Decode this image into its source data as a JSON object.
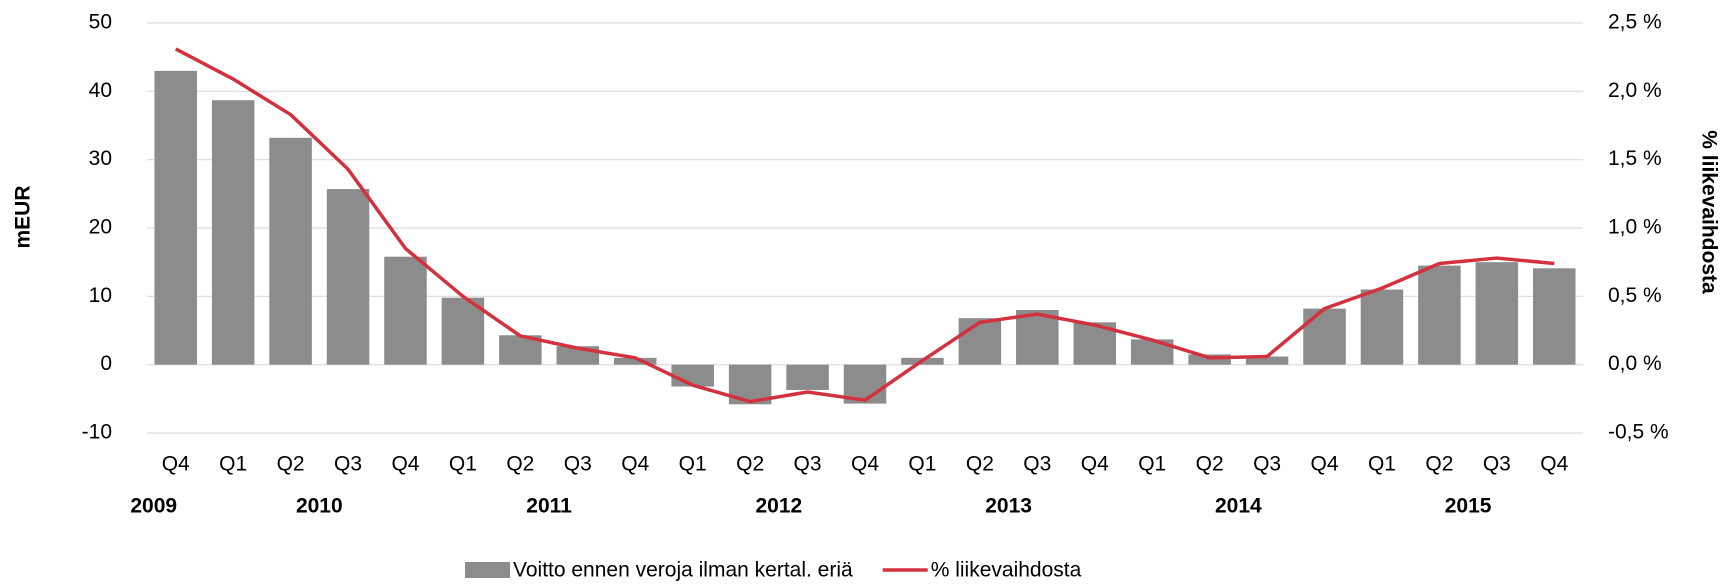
{
  "chart_data": {
    "type": "bar_line",
    "categories": [
      "Q4",
      "Q1",
      "Q2",
      "Q3",
      "Q4",
      "Q1",
      "Q2",
      "Q3",
      "Q4",
      "Q1",
      "Q2",
      "Q3",
      "Q4",
      "Q1",
      "Q2",
      "Q3",
      "Q4",
      "Q1",
      "Q2",
      "Q3",
      "Q4",
      "Q1",
      "Q2",
      "Q3",
      "Q4"
    ],
    "years": [
      "2009",
      "2010",
      "2011",
      "2012",
      "2013",
      "2014",
      "2015"
    ],
    "ylabel": "mEUR",
    "y2label": "% liikevaihdosta",
    "series": [
      {
        "name": "Voitto ennen veroja ilman kertal. eriä",
        "type": "bar",
        "color": "#8c8c8c",
        "values": [
          43,
          38.7,
          33.2,
          25.7,
          15.8,
          9.8,
          4.3,
          2.7,
          1,
          -3.2,
          -5.8,
          -3.7,
          -5.7,
          1,
          6.8,
          8,
          6.2,
          3.7,
          1.5,
          1.2,
          8.2,
          11,
          14.5,
          15,
          14.1
        ]
      },
      {
        "name": "% liikevaihdosta",
        "type": "line",
        "color": "#d2313d",
        "axis": "y2",
        "values": [
          2.31,
          2.09,
          1.83,
          1.43,
          0.85,
          0.5,
          0.21,
          0.12,
          0.05,
          -0.15,
          -0.27,
          -0.2,
          -0.26,
          0.03,
          0.31,
          0.37,
          0.29,
          0.18,
          0.05,
          0.06,
          0.41,
          0.56,
          0.74,
          0.78,
          0.74
        ]
      }
    ],
    "ylim": [
      -10,
      50
    ],
    "yticks": [
      -10,
      0,
      10,
      20,
      30,
      40,
      50
    ],
    "y2lim": [
      -0.5,
      2.5
    ],
    "y2ticks": [
      {
        "value": -0.5,
        "label": "-0,5 %"
      },
      {
        "value": 0,
        "label": "0,0 %"
      },
      {
        "value": 0.5,
        "label": "0,5 %"
      },
      {
        "value": 1,
        "label": "1,0 %"
      },
      {
        "value": 1.5,
        "label": "1,5 %"
      },
      {
        "value": 2,
        "label": "2,0 %"
      },
      {
        "value": 2.5,
        "label": "2,5 %"
      }
    ],
    "grid": true,
    "legend": "bottom"
  }
}
